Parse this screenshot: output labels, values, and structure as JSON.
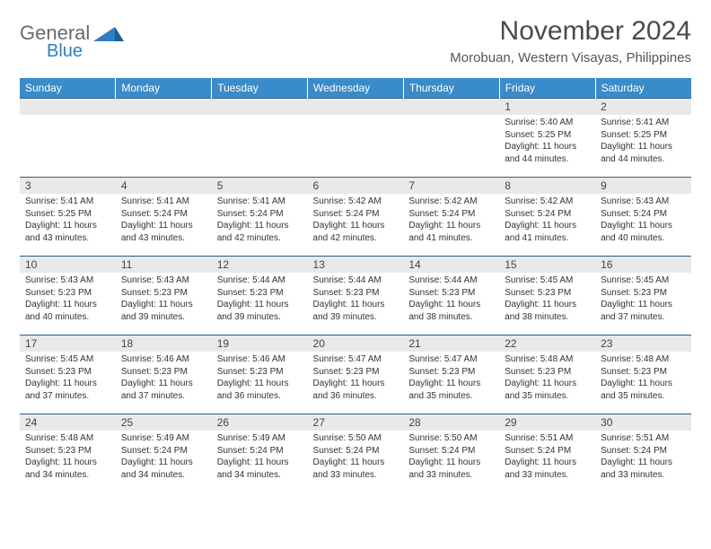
{
  "brand": {
    "word1": "General",
    "word2": "Blue"
  },
  "title": "November 2024",
  "location": "Morobuan, Western Visayas, Philippines",
  "colors": {
    "header_bg": "#3a8bc9",
    "header_text": "#ffffff",
    "daynum_bg": "#e9e9e9",
    "row_border": "#2a5d8a",
    "logo_blue": "#2f7fc2",
    "logo_gray": "#6a6a6a",
    "body_text": "#333333"
  },
  "day_headers": [
    "Sunday",
    "Monday",
    "Tuesday",
    "Wednesday",
    "Thursday",
    "Friday",
    "Saturday"
  ],
  "first_weekday_index": 5,
  "days": [
    {
      "n": 1,
      "sunrise": "5:40 AM",
      "sunset": "5:25 PM",
      "daylight": "11 hours and 44 minutes."
    },
    {
      "n": 2,
      "sunrise": "5:41 AM",
      "sunset": "5:25 PM",
      "daylight": "11 hours and 44 minutes."
    },
    {
      "n": 3,
      "sunrise": "5:41 AM",
      "sunset": "5:25 PM",
      "daylight": "11 hours and 43 minutes."
    },
    {
      "n": 4,
      "sunrise": "5:41 AM",
      "sunset": "5:24 PM",
      "daylight": "11 hours and 43 minutes."
    },
    {
      "n": 5,
      "sunrise": "5:41 AM",
      "sunset": "5:24 PM",
      "daylight": "11 hours and 42 minutes."
    },
    {
      "n": 6,
      "sunrise": "5:42 AM",
      "sunset": "5:24 PM",
      "daylight": "11 hours and 42 minutes."
    },
    {
      "n": 7,
      "sunrise": "5:42 AM",
      "sunset": "5:24 PM",
      "daylight": "11 hours and 41 minutes."
    },
    {
      "n": 8,
      "sunrise": "5:42 AM",
      "sunset": "5:24 PM",
      "daylight": "11 hours and 41 minutes."
    },
    {
      "n": 9,
      "sunrise": "5:43 AM",
      "sunset": "5:24 PM",
      "daylight": "11 hours and 40 minutes."
    },
    {
      "n": 10,
      "sunrise": "5:43 AM",
      "sunset": "5:23 PM",
      "daylight": "11 hours and 40 minutes."
    },
    {
      "n": 11,
      "sunrise": "5:43 AM",
      "sunset": "5:23 PM",
      "daylight": "11 hours and 39 minutes."
    },
    {
      "n": 12,
      "sunrise": "5:44 AM",
      "sunset": "5:23 PM",
      "daylight": "11 hours and 39 minutes."
    },
    {
      "n": 13,
      "sunrise": "5:44 AM",
      "sunset": "5:23 PM",
      "daylight": "11 hours and 39 minutes."
    },
    {
      "n": 14,
      "sunrise": "5:44 AM",
      "sunset": "5:23 PM",
      "daylight": "11 hours and 38 minutes."
    },
    {
      "n": 15,
      "sunrise": "5:45 AM",
      "sunset": "5:23 PM",
      "daylight": "11 hours and 38 minutes."
    },
    {
      "n": 16,
      "sunrise": "5:45 AM",
      "sunset": "5:23 PM",
      "daylight": "11 hours and 37 minutes."
    },
    {
      "n": 17,
      "sunrise": "5:45 AM",
      "sunset": "5:23 PM",
      "daylight": "11 hours and 37 minutes."
    },
    {
      "n": 18,
      "sunrise": "5:46 AM",
      "sunset": "5:23 PM",
      "daylight": "11 hours and 37 minutes."
    },
    {
      "n": 19,
      "sunrise": "5:46 AM",
      "sunset": "5:23 PM",
      "daylight": "11 hours and 36 minutes."
    },
    {
      "n": 20,
      "sunrise": "5:47 AM",
      "sunset": "5:23 PM",
      "daylight": "11 hours and 36 minutes."
    },
    {
      "n": 21,
      "sunrise": "5:47 AM",
      "sunset": "5:23 PM",
      "daylight": "11 hours and 35 minutes."
    },
    {
      "n": 22,
      "sunrise": "5:48 AM",
      "sunset": "5:23 PM",
      "daylight": "11 hours and 35 minutes."
    },
    {
      "n": 23,
      "sunrise": "5:48 AM",
      "sunset": "5:23 PM",
      "daylight": "11 hours and 35 minutes."
    },
    {
      "n": 24,
      "sunrise": "5:48 AM",
      "sunset": "5:23 PM",
      "daylight": "11 hours and 34 minutes."
    },
    {
      "n": 25,
      "sunrise": "5:49 AM",
      "sunset": "5:24 PM",
      "daylight": "11 hours and 34 minutes."
    },
    {
      "n": 26,
      "sunrise": "5:49 AM",
      "sunset": "5:24 PM",
      "daylight": "11 hours and 34 minutes."
    },
    {
      "n": 27,
      "sunrise": "5:50 AM",
      "sunset": "5:24 PM",
      "daylight": "11 hours and 33 minutes."
    },
    {
      "n": 28,
      "sunrise": "5:50 AM",
      "sunset": "5:24 PM",
      "daylight": "11 hours and 33 minutes."
    },
    {
      "n": 29,
      "sunrise": "5:51 AM",
      "sunset": "5:24 PM",
      "daylight": "11 hours and 33 minutes."
    },
    {
      "n": 30,
      "sunrise": "5:51 AM",
      "sunset": "5:24 PM",
      "daylight": "11 hours and 33 minutes."
    }
  ],
  "labels": {
    "sunrise": "Sunrise:",
    "sunset": "Sunset:",
    "daylight": "Daylight:"
  }
}
